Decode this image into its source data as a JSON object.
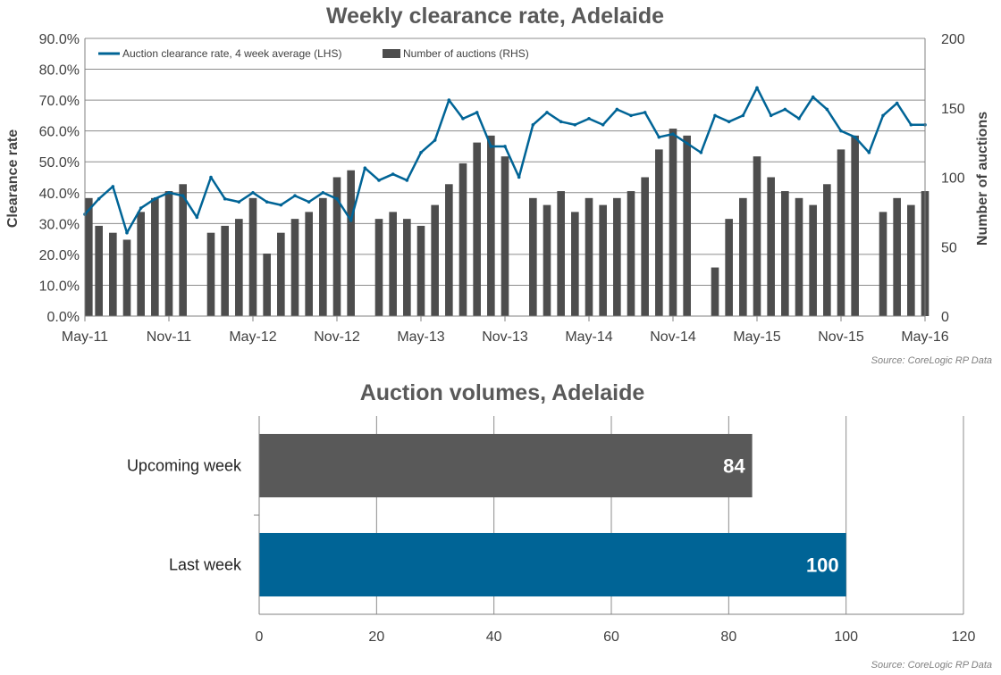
{
  "chart_data": [
    {
      "type": "bar+line",
      "title": "Weekly clearance rate, Adelaide",
      "ylabel": "Clearance rate",
      "y2label": "Number of auctions",
      "ylim": [
        0,
        90
      ],
      "y2lim": [
        0,
        200
      ],
      "yticks": [
        "0.0%",
        "10.0%",
        "20.0%",
        "30.0%",
        "40.0%",
        "50.0%",
        "60.0%",
        "70.0%",
        "80.0%",
        "90.0%"
      ],
      "y2ticks": [
        "0",
        "50",
        "100",
        "150",
        "200"
      ],
      "xticks": [
        "May-11",
        "Nov-11",
        "May-12",
        "Nov-12",
        "May-13",
        "Nov-13",
        "May-14",
        "Nov-14",
        "May-15",
        "Nov-15",
        "May-16"
      ],
      "grid": true,
      "legend": "top-left",
      "source": "Source: CoreLogic RP Data",
      "series": [
        {
          "name": "Auction clearance rate, 4 week average (LHS)",
          "type": "line",
          "axis": "left",
          "color": "#006496",
          "x": [
            "May-11",
            "Jun-11",
            "Jul-11",
            "Aug-11",
            "Sep-11",
            "Oct-11",
            "Nov-11",
            "Dec-11",
            "Jan-12",
            "Feb-12",
            "Mar-12",
            "Apr-12",
            "May-12",
            "Jun-12",
            "Jul-12",
            "Aug-12",
            "Sep-12",
            "Oct-12",
            "Nov-12",
            "Dec-12",
            "Jan-13",
            "Feb-13",
            "Mar-13",
            "Apr-13",
            "May-13",
            "Jun-13",
            "Jul-13",
            "Aug-13",
            "Sep-13",
            "Oct-13",
            "Nov-13",
            "Dec-13",
            "Jan-14",
            "Feb-14",
            "Mar-14",
            "Apr-14",
            "May-14",
            "Jun-14",
            "Jul-14",
            "Aug-14",
            "Sep-14",
            "Oct-14",
            "Nov-14",
            "Dec-14",
            "Jan-15",
            "Feb-15",
            "Mar-15",
            "Apr-15",
            "May-15",
            "Jun-15",
            "Jul-15",
            "Aug-15",
            "Sep-15",
            "Oct-15",
            "Nov-15",
            "Dec-15",
            "Jan-16",
            "Feb-16",
            "Mar-16",
            "Apr-16",
            "May-16"
          ],
          "values": [
            33,
            38,
            42,
            27,
            35,
            38,
            40,
            39,
            32,
            45,
            38,
            37,
            40,
            37,
            36,
            39,
            37,
            40,
            38,
            31,
            48,
            44,
            46,
            44,
            53,
            57,
            70,
            64,
            66,
            55,
            55,
            45,
            62,
            66,
            63,
            62,
            64,
            62,
            67,
            65,
            66,
            58,
            59,
            56,
            53,
            65,
            63,
            65,
            74,
            65,
            67,
            64,
            71,
            67,
            60,
            58,
            53,
            65,
            69,
            62,
            62
          ]
        },
        {
          "name": "Number of auctions (RHS)",
          "type": "bar",
          "axis": "right",
          "color": "#4d4d4d",
          "x": [
            "May-11",
            "Jun-11",
            "Jul-11",
            "Aug-11",
            "Sep-11",
            "Oct-11",
            "Nov-11",
            "Dec-11",
            "Jan-12",
            "Feb-12",
            "Mar-12",
            "Apr-12",
            "May-12",
            "Jun-12",
            "Jul-12",
            "Aug-12",
            "Sep-12",
            "Oct-12",
            "Nov-12",
            "Dec-12",
            "Jan-13",
            "Feb-13",
            "Mar-13",
            "Apr-13",
            "May-13",
            "Jun-13",
            "Jul-13",
            "Aug-13",
            "Sep-13",
            "Oct-13",
            "Nov-13",
            "Dec-13",
            "Jan-14",
            "Feb-14",
            "Mar-14",
            "Apr-14",
            "May-14",
            "Jun-14",
            "Jul-14",
            "Aug-14",
            "Sep-14",
            "Oct-14",
            "Nov-14",
            "Dec-14",
            "Jan-15",
            "Feb-15",
            "Mar-15",
            "Apr-15",
            "May-15",
            "Jun-15",
            "Jul-15",
            "Aug-15",
            "Sep-15",
            "Oct-15",
            "Nov-15",
            "Dec-15",
            "Jan-16",
            "Feb-16",
            "Mar-16",
            "Apr-16",
            "May-16"
          ],
          "values": [
            85,
            65,
            60,
            55,
            75,
            85,
            90,
            95,
            0,
            60,
            65,
            70,
            85,
            45,
            60,
            70,
            75,
            85,
            100,
            105,
            0,
            70,
            75,
            70,
            65,
            80,
            95,
            110,
            125,
            130,
            115,
            0,
            85,
            80,
            90,
            75,
            85,
            80,
            85,
            90,
            100,
            120,
            135,
            130,
            0,
            35,
            70,
            85,
            115,
            100,
            90,
            85,
            80,
            95,
            120,
            130,
            0,
            75,
            85,
            80,
            90
          ]
        }
      ]
    },
    {
      "type": "bar",
      "orientation": "horizontal",
      "title": "Auction volumes, Adelaide",
      "categories": [
        "Upcoming week",
        "Last week"
      ],
      "values": [
        84,
        100
      ],
      "colors": [
        "#595959",
        "#006496"
      ],
      "xlim": [
        0,
        120
      ],
      "xticks": [
        "0",
        "20",
        "40",
        "60",
        "80",
        "100",
        "120"
      ],
      "grid": true,
      "source": "Source: CoreLogic RP Data"
    }
  ]
}
